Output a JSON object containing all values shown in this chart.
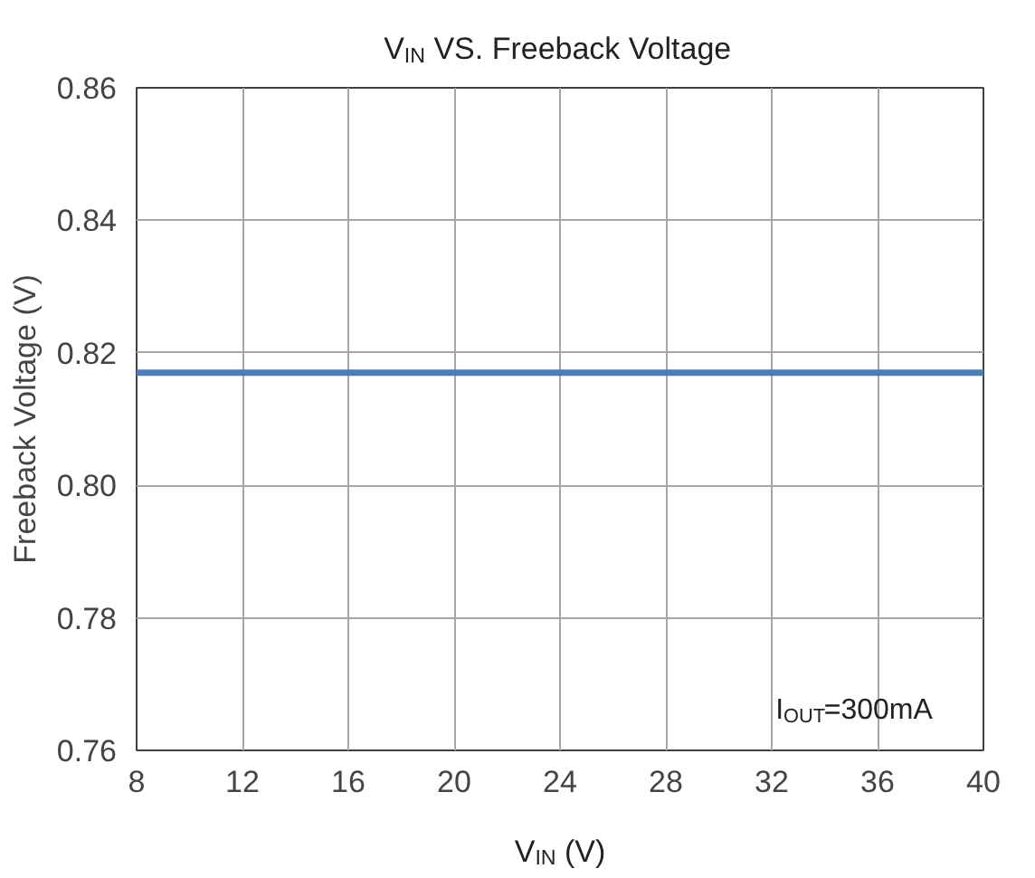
{
  "chart_data": {
    "type": "line",
    "title": "V$_{IN}$ VS. Freeback Voltage",
    "xlabel": "V$_{IN}$ (V)",
    "ylabel": "Freeback Voltage (V)",
    "x": [
      8,
      40
    ],
    "series": [
      {
        "color": "#4a7ebb",
        "values": [
          0.817,
          0.817
        ]
      }
    ],
    "xlim": [
      8,
      40
    ],
    "ylim": [
      0.76,
      0.86
    ],
    "xticks": [
      8,
      12,
      16,
      20,
      24,
      28,
      32,
      36,
      40
    ],
    "yticks": [
      {
        "value": 0.76,
        "label": "0.76"
      },
      {
        "value": 0.78,
        "label": "0.78"
      },
      {
        "value": 0.8,
        "label": "0.80"
      },
      {
        "value": 0.82,
        "label": "0.82"
      },
      {
        "value": 0.84,
        "label": "0.84"
      },
      {
        "value": 0.86,
        "label": "0.86"
      }
    ],
    "grid": true,
    "marker": "none",
    "line_style": "solid",
    "annotations": [
      "I$_{OUT}$=300mA"
    ]
  }
}
